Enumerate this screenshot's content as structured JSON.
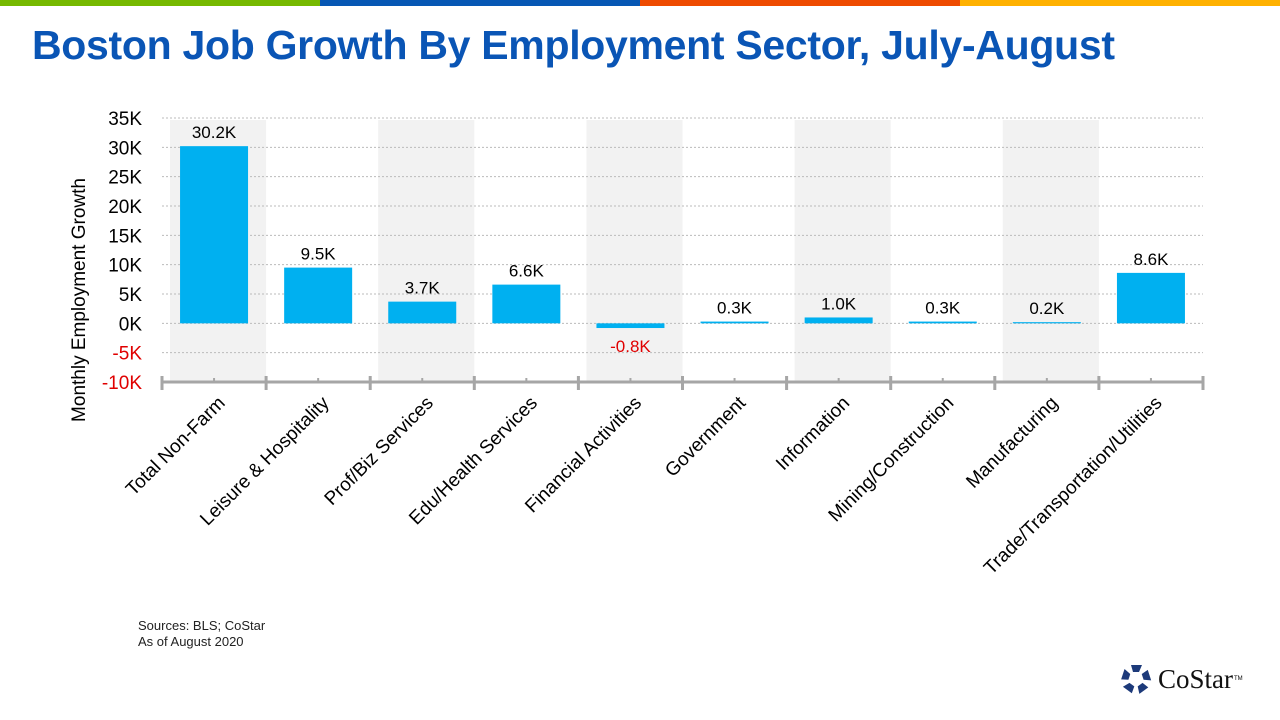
{
  "header": {
    "title": "Boston Job Growth By Employment Sector, July-August",
    "stripe_colors": [
      "#76b900",
      "#0657b4",
      "#ee4b00",
      "#ffb100"
    ]
  },
  "chart_data": {
    "type": "bar",
    "title": "",
    "xlabel": "",
    "ylabel": "Monthly Employment Growth",
    "ylim": [
      -10,
      35
    ],
    "yticks": [
      35,
      30,
      25,
      20,
      15,
      10,
      5,
      0,
      -5,
      -10
    ],
    "ytick_labels": [
      "35K",
      "30K",
      "25K",
      "20K",
      "15K",
      "10K",
      "5K",
      "0K",
      "-5K",
      "-10K"
    ],
    "grid": true,
    "alternating_band_shading": true,
    "categories": [
      "Total Non-Farm",
      "Leisure & Hospitality",
      "Prof/Biz Services",
      "Edu/Health Services",
      "Financial Activities",
      "Government",
      "Information",
      "Mining/Construction",
      "Manufacturing",
      "Trade/Transportation/Utilities"
    ],
    "values": [
      30.2,
      9.5,
      3.7,
      6.6,
      -0.8,
      0.3,
      1.0,
      0.3,
      0.2,
      8.6
    ],
    "data_labels": [
      "30.2K",
      "9.5K",
      "3.7K",
      "6.6K",
      "-0.8K",
      "0.3K",
      "1.0K",
      "0.3K",
      "0.2K",
      "8.6K"
    ],
    "units": "thousands",
    "bar_color": "#00b0f0",
    "negative_label_color": "#e00000"
  },
  "footer": {
    "sources": "Sources: BLS; CoStar",
    "as_of": "As of August 2020",
    "logo": "CoStar",
    "logo_tm": "TM"
  }
}
